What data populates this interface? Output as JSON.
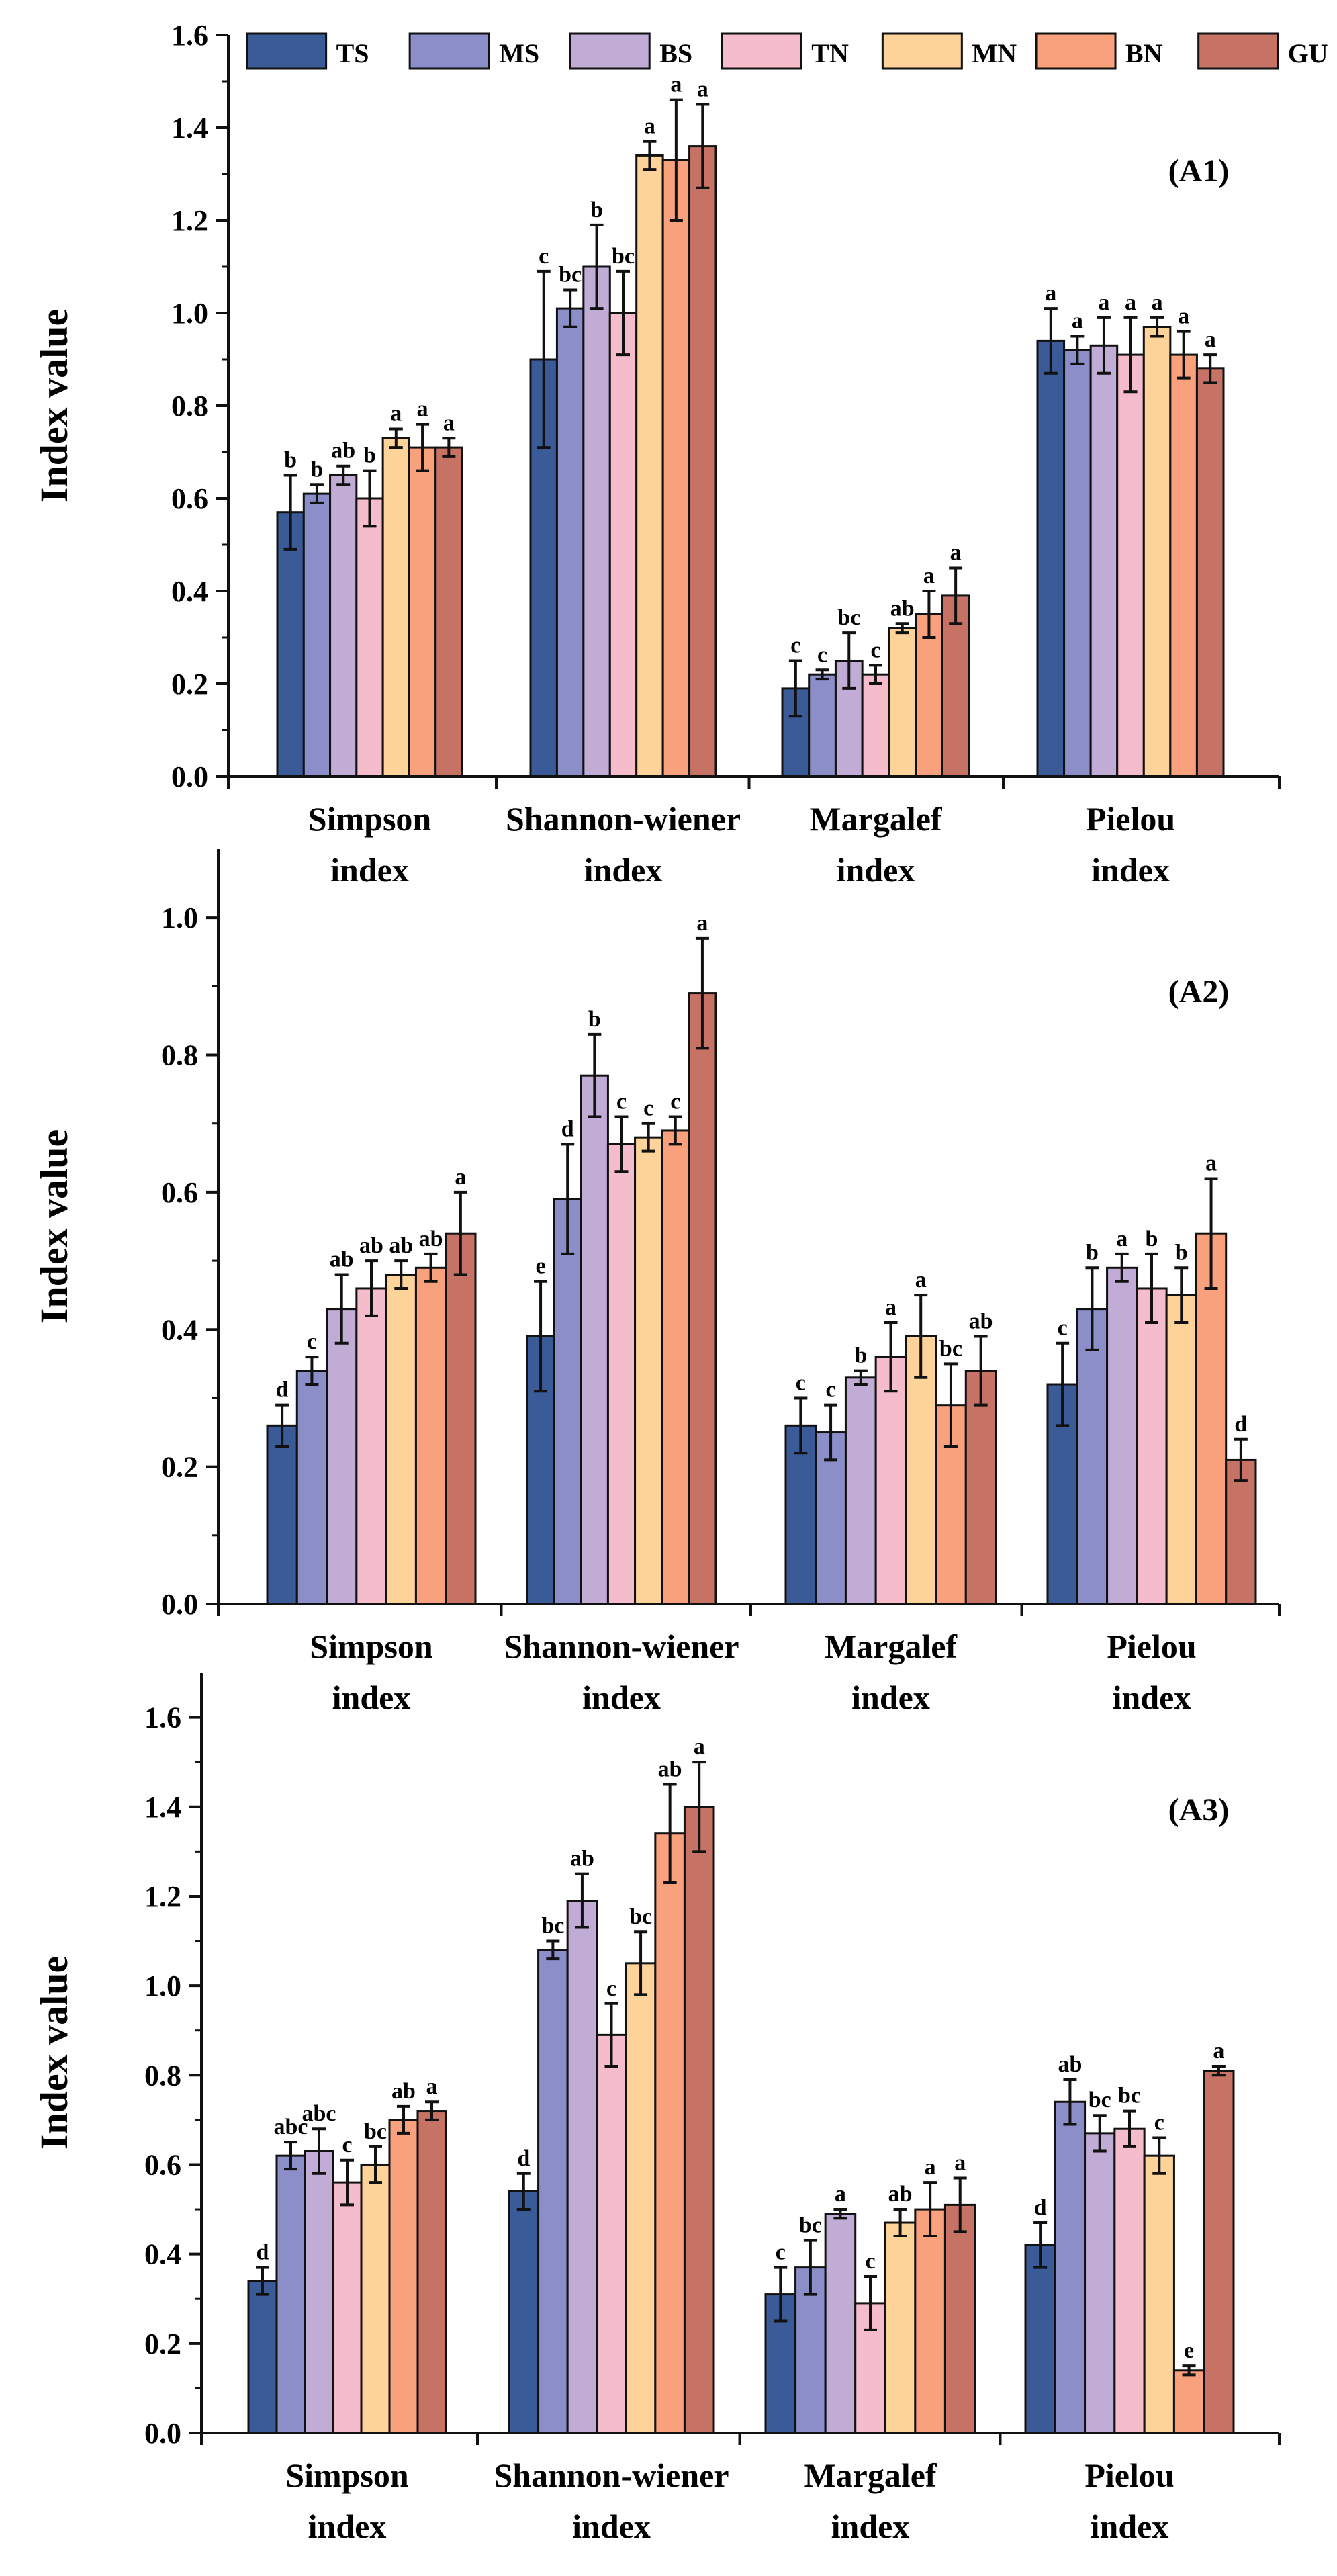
{
  "legend": [
    {
      "name": "TS",
      "color": "#3a5b97"
    },
    {
      "name": "MS",
      "color": "#8b8ec8"
    },
    {
      "name": "BS",
      "color": "#c1acd6"
    },
    {
      "name": "TN",
      "color": "#f5bccb"
    },
    {
      "name": "MN",
      "color": "#fdd39a"
    },
    {
      "name": "BN",
      "color": "#f8a17c"
    },
    {
      "name": "GU",
      "color": "#c67366"
    }
  ],
  "chart_data": [
    {
      "type": "bar",
      "panel_label": "(A1)",
      "ylabel": "Index value",
      "ylim": [
        0,
        1.6
      ],
      "yticks": [
        "0.0",
        "0.2",
        "0.4",
        "0.6",
        "0.8",
        "1.0",
        "1.2",
        "1.4",
        "1.6"
      ],
      "categories": [
        [
          "Simpson",
          "index"
        ],
        [
          "Shannon-wiener",
          "index"
        ],
        [
          "Margalef",
          "index"
        ],
        [
          "Pielou",
          "index"
        ]
      ],
      "series": [
        {
          "name": "TS",
          "values": [
            0.57,
            0.9,
            0.19,
            0.94
          ],
          "errors": [
            0.08,
            0.19,
            0.06,
            0.07
          ],
          "letters": [
            "b",
            "c",
            "c",
            "a"
          ]
        },
        {
          "name": "MS",
          "values": [
            0.61,
            1.01,
            0.22,
            0.92
          ],
          "errors": [
            0.02,
            0.04,
            0.01,
            0.03
          ],
          "letters": [
            "b",
            "bc",
            "c",
            "a"
          ]
        },
        {
          "name": "BS",
          "values": [
            0.65,
            1.1,
            0.25,
            0.93
          ],
          "errors": [
            0.02,
            0.09,
            0.06,
            0.06
          ],
          "letters": [
            "ab",
            "b",
            "bc",
            "a"
          ]
        },
        {
          "name": "TN",
          "values": [
            0.6,
            1.0,
            0.22,
            0.91
          ],
          "errors": [
            0.06,
            0.09,
            0.02,
            0.08
          ],
          "letters": [
            "b",
            "bc",
            "c",
            "a"
          ]
        },
        {
          "name": "MN",
          "values": [
            0.73,
            1.34,
            0.32,
            0.97
          ],
          "errors": [
            0.02,
            0.03,
            0.01,
            0.02
          ],
          "letters": [
            "a",
            "a",
            "ab",
            "a"
          ]
        },
        {
          "name": "BN",
          "values": [
            0.71,
            1.33,
            0.35,
            0.91
          ],
          "errors": [
            0.05,
            0.13,
            0.05,
            0.05
          ],
          "letters": [
            "a",
            "a",
            "a",
            "a"
          ]
        },
        {
          "name": "GU",
          "values": [
            0.71,
            1.36,
            0.39,
            0.88
          ],
          "errors": [
            0.02,
            0.09,
            0.06,
            0.03
          ],
          "letters": [
            "a",
            "a",
            "a",
            "a"
          ]
        }
      ]
    },
    {
      "type": "bar",
      "panel_label": "(A2)",
      "ylabel": "Index value",
      "ylim": [
        0,
        1.1
      ],
      "yticks": [
        "0.0",
        "0.2",
        "0.4",
        "0.6",
        "0.8",
        "1.0"
      ],
      "categories": [
        [
          "Simpson",
          "index"
        ],
        [
          "Shannon-wiener",
          "index"
        ],
        [
          "Margalef",
          "index"
        ],
        [
          "Pielou",
          "index"
        ]
      ],
      "series": [
        {
          "name": "TS",
          "values": [
            0.26,
            0.39,
            0.26,
            0.32
          ],
          "errors": [
            0.03,
            0.08,
            0.04,
            0.06
          ],
          "letters": [
            "d",
            "e",
            "c",
            "c"
          ]
        },
        {
          "name": "MS",
          "values": [
            0.34,
            0.59,
            0.25,
            0.43
          ],
          "errors": [
            0.02,
            0.08,
            0.04,
            0.06
          ],
          "letters": [
            "c",
            "d",
            "c",
            "b"
          ]
        },
        {
          "name": "BS",
          "values": [
            0.43,
            0.77,
            0.33,
            0.49
          ],
          "errors": [
            0.05,
            0.06,
            0.01,
            0.02
          ],
          "letters": [
            "ab",
            "b",
            "b",
            "a"
          ]
        },
        {
          "name": "TN",
          "values": [
            0.46,
            0.67,
            0.36,
            0.46
          ],
          "errors": [
            0.04,
            0.04,
            0.05,
            0.05
          ],
          "letters": [
            "ab",
            "c",
            "a",
            "b"
          ]
        },
        {
          "name": "MN",
          "values": [
            0.48,
            0.68,
            0.39,
            0.45
          ],
          "errors": [
            0.02,
            0.02,
            0.06,
            0.04
          ],
          "letters": [
            "ab",
            "c",
            "a",
            "b"
          ]
        },
        {
          "name": "BN",
          "values": [
            0.49,
            0.69,
            0.29,
            0.54
          ],
          "errors": [
            0.02,
            0.02,
            0.06,
            0.08
          ],
          "letters": [
            "ab",
            "c",
            "bc",
            "a"
          ]
        },
        {
          "name": "GU",
          "values": [
            0.54,
            0.89,
            0.34,
            0.21
          ],
          "errors": [
            0.06,
            0.08,
            0.05,
            0.03
          ],
          "letters": [
            "a",
            "a",
            "ab",
            "d"
          ]
        }
      ]
    },
    {
      "type": "bar",
      "panel_label": "(A3)",
      "ylabel": "Index value",
      "ylim": [
        0,
        1.7
      ],
      "yticks": [
        "0.0",
        "0.2",
        "0.4",
        "0.6",
        "0.8",
        "1.0",
        "1.2",
        "1.4",
        "1.6"
      ],
      "categories": [
        [
          "Simpson",
          "index"
        ],
        [
          "Shannon-wiener",
          "index"
        ],
        [
          "Margalef",
          "index"
        ],
        [
          "Pielou",
          "index"
        ]
      ],
      "series": [
        {
          "name": "TS",
          "values": [
            0.34,
            0.54,
            0.31,
            0.42
          ],
          "errors": [
            0.03,
            0.04,
            0.06,
            0.05
          ],
          "letters": [
            "d",
            "d",
            "c",
            "d"
          ]
        },
        {
          "name": "MS",
          "values": [
            0.62,
            1.08,
            0.37,
            0.74
          ],
          "errors": [
            0.03,
            0.02,
            0.06,
            0.05
          ],
          "letters": [
            "abc",
            "bc",
            "bc",
            "ab"
          ]
        },
        {
          "name": "BS",
          "values": [
            0.63,
            1.19,
            0.49,
            0.67
          ],
          "errors": [
            0.05,
            0.06,
            0.01,
            0.04
          ],
          "letters": [
            "abc",
            "ab",
            "a",
            "bc"
          ]
        },
        {
          "name": "TN",
          "values": [
            0.56,
            0.89,
            0.29,
            0.68
          ],
          "errors": [
            0.05,
            0.07,
            0.06,
            0.04
          ],
          "letters": [
            "c",
            "c",
            "c",
            "bc"
          ]
        },
        {
          "name": "MN",
          "values": [
            0.6,
            1.05,
            0.47,
            0.62
          ],
          "errors": [
            0.04,
            0.07,
            0.03,
            0.04
          ],
          "letters": [
            "bc",
            "bc",
            "ab",
            "c"
          ]
        },
        {
          "name": "BN",
          "values": [
            0.7,
            1.34,
            0.5,
            0.14
          ],
          "errors": [
            0.03,
            0.11,
            0.06,
            0.01
          ],
          "letters": [
            "ab",
            "ab",
            "a",
            "e"
          ]
        },
        {
          "name": "GU",
          "values": [
            0.72,
            1.4,
            0.51,
            0.81
          ],
          "errors": [
            0.02,
            0.1,
            0.06,
            0.01
          ],
          "letters": [
            "a",
            "a",
            "a",
            "a"
          ]
        }
      ]
    }
  ]
}
